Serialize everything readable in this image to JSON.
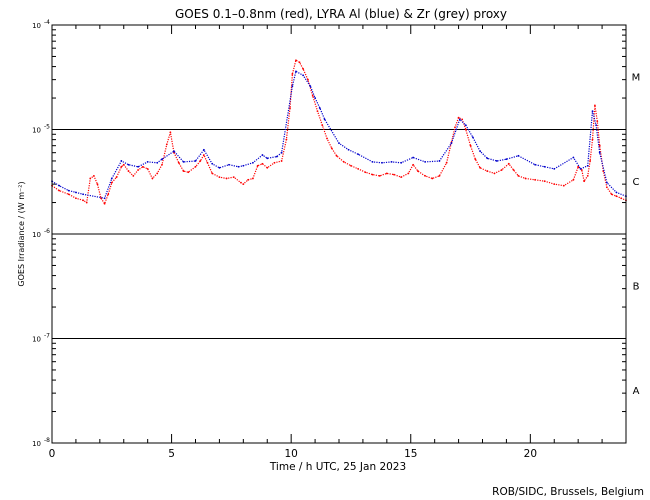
{
  "chart_data": {
    "type": "scatter",
    "title": "GOES 0.1–0.8nm (red), LYRA Al (blue) & Zr (grey) proxy",
    "xlabel": "Time / h UTC, 25 Jan 2023",
    "ylabel": "GOES Irradiance / (W m⁻²)",
    "xlim": [
      0,
      24
    ],
    "ylim": [
      1e-08,
      0.0001
    ],
    "y_scale": "log",
    "x_ticks": [
      0,
      5,
      10,
      15,
      20
    ],
    "y_ticks": [
      {
        "mantissa": "10",
        "exp": "-8",
        "value": 1e-08
      },
      {
        "mantissa": "10",
        "exp": "-7",
        "value": 1e-07
      },
      {
        "mantissa": "10",
        "exp": "-6",
        "value": 1e-06
      },
      {
        "mantissa": "10",
        "exp": "-5",
        "value": 1e-05
      },
      {
        "mantissa": "10",
        "exp": "-4",
        "value": 0.0001
      }
    ],
    "flare_class_lines": [
      1e-07,
      1e-06,
      1e-05
    ],
    "flare_classes": [
      {
        "label": "A",
        "value": 3.2e-08
      },
      {
        "label": "B",
        "value": 3.2e-07
      },
      {
        "label": "C",
        "value": 3.2e-06
      },
      {
        "label": "M",
        "value": 3.2e-05
      }
    ],
    "colors": {
      "goes": "#ff0000",
      "lyra_al": "#0000cc",
      "lyra_zr": "#888888",
      "axis": "#000000"
    },
    "series": [
      {
        "name": "GOES 0.1–0.8nm",
        "color": "#ff0000",
        "x": [
          0.0,
          0.3,
          0.7,
          1.0,
          1.3,
          1.45,
          1.6,
          1.75,
          1.9,
          2.05,
          2.2,
          2.35,
          2.5,
          2.7,
          2.9,
          3.0,
          3.2,
          3.4,
          3.6,
          3.8,
          4.0,
          4.2,
          4.4,
          4.6,
          4.8,
          4.95,
          5.1,
          5.3,
          5.5,
          5.7,
          6.0,
          6.2,
          6.35,
          6.5,
          6.7,
          7.0,
          7.3,
          7.6,
          7.9,
          8.0,
          8.2,
          8.4,
          8.6,
          8.8,
          9.0,
          9.3,
          9.6,
          9.8,
          9.95,
          10.05,
          10.2,
          10.35,
          10.5,
          10.7,
          10.9,
          11.1,
          11.3,
          11.5,
          11.7,
          11.9,
          12.2,
          12.5,
          12.8,
          13.1,
          13.4,
          13.7,
          14.0,
          14.3,
          14.6,
          14.9,
          15.1,
          15.3,
          15.6,
          15.9,
          16.2,
          16.5,
          16.7,
          16.85,
          17.0,
          17.15,
          17.3,
          17.5,
          17.7,
          17.9,
          18.2,
          18.5,
          18.8,
          19.1,
          19.3,
          19.5,
          19.8,
          20.2,
          20.6,
          21.0,
          21.4,
          21.8,
          22.0,
          22.15,
          22.25,
          22.4,
          22.5,
          22.6,
          22.7,
          22.8,
          22.9,
          23.05,
          23.2,
          23.4,
          23.6,
          23.8,
          24.0
        ],
        "y": [
          2.9e-06,
          2.6e-06,
          2.4e-06,
          2.2e-06,
          2.1e-06,
          2e-06,
          3.4e-06,
          3.6e-06,
          3e-06,
          2.2e-06,
          1.95e-06,
          2.4e-06,
          3.1e-06,
          3.5e-06,
          4.4e-06,
          4.6e-06,
          4e-06,
          3.6e-06,
          4.1e-06,
          4.4e-06,
          4.2e-06,
          3.4e-06,
          3.8e-06,
          4.6e-06,
          7.2e-06,
          9.4e-06,
          6e-06,
          4.8e-06,
          4e-06,
          3.9e-06,
          4.4e-06,
          5e-06,
          5.7e-06,
          4.8e-06,
          3.8e-06,
          3.5e-06,
          3.4e-06,
          3.5e-06,
          3.1e-06,
          3e-06,
          3.3e-06,
          3.4e-06,
          4.5e-06,
          4.7e-06,
          4.3e-06,
          4.8e-06,
          5e-06,
          8e-06,
          1.6e-05,
          3.4e-05,
          4.6e-05,
          4.4e-05,
          3.8e-05,
          3e-05,
          2.1e-05,
          1.5e-05,
          1.1e-05,
          8.2e-06,
          6.6e-06,
          5.6e-06,
          4.9e-06,
          4.5e-06,
          4.2e-06,
          3.9e-06,
          3.7e-06,
          3.6e-06,
          3.8e-06,
          3.7e-06,
          3.5e-06,
          3.8e-06,
          4.6e-06,
          4e-06,
          3.6e-06,
          3.4e-06,
          3.6e-06,
          4.8e-06,
          7.5e-06,
          1.05e-05,
          1.3e-05,
          1.25e-05,
          1e-05,
          7e-06,
          5.2e-06,
          4.3e-06,
          4e-06,
          3.8e-06,
          4.1e-06,
          4.7e-06,
          4.1e-06,
          3.6e-06,
          3.4e-06,
          3.3e-06,
          3.2e-06,
          3e-06,
          2.9e-06,
          3.3e-06,
          4.4e-06,
          4.1e-06,
          3.2e-06,
          3.6e-06,
          5e-06,
          8e-06,
          1.7e-05,
          1.2e-05,
          7e-06,
          4e-06,
          2.8e-06,
          2.4e-06,
          2.3e-06,
          2.2e-06,
          2.1e-06
        ]
      },
      {
        "name": "LYRA Al",
        "color": "#0000cc",
        "x": [
          0.0,
          0.3,
          0.7,
          1.0,
          1.3,
          2.2,
          2.5,
          2.9,
          3.2,
          3.6,
          4.0,
          4.4,
          4.6,
          5.1,
          5.5,
          6.0,
          6.35,
          6.7,
          7.0,
          7.4,
          7.8,
          8.0,
          8.4,
          8.8,
          9.0,
          9.4,
          9.6,
          10.05,
          10.2,
          10.5,
          10.8,
          11.0,
          11.2,
          11.4,
          12.0,
          12.4,
          12.8,
          13.4,
          13.8,
          14.2,
          14.6,
          15.1,
          15.6,
          16.2,
          16.7,
          16.9,
          17.05,
          17.3,
          17.6,
          17.9,
          18.2,
          18.6,
          19.0,
          19.5,
          20.2,
          20.6,
          21.0,
          21.8,
          22.1,
          22.4,
          22.6,
          22.75,
          22.9,
          23.2,
          23.6,
          24.0
        ],
        "y": [
          3.2e-06,
          2.9e-06,
          2.6e-06,
          2.5e-06,
          2.4e-06,
          2.2e-06,
          3.4e-06,
          5e-06,
          4.6e-06,
          4.4e-06,
          4.9e-06,
          4.8e-06,
          5.2e-06,
          6.2e-06,
          4.9e-06,
          5e-06,
          6.4e-06,
          4.7e-06,
          4.3e-06,
          4.6e-06,
          4.4e-06,
          4.5e-06,
          4.8e-06,
          5.7e-06,
          5.3e-06,
          5.5e-06,
          6e-06,
          2.6e-05,
          3.6e-05,
          3.3e-05,
          2.6e-05,
          2e-05,
          1.6e-05,
          1.25e-05,
          7.4e-06,
          6.4e-06,
          5.8e-06,
          4.9e-06,
          4.8e-06,
          4.9e-06,
          4.8e-06,
          5.4e-06,
          4.9e-06,
          5e-06,
          7.4e-06,
          1e-05,
          1.25e-05,
          1.1e-05,
          8.4e-06,
          6.2e-06,
          5.3e-06,
          5e-06,
          5.2e-06,
          5.6e-06,
          4.6e-06,
          4.4e-06,
          4.2e-06,
          5.4e-06,
          4.2e-06,
          4.5e-06,
          1.5e-05,
          1.1e-05,
          6e-06,
          3.1e-06,
          2.5e-06,
          2.3e-06
        ]
      }
    ],
    "credit": "ROB/SIDC, Brussels, Belgium"
  }
}
